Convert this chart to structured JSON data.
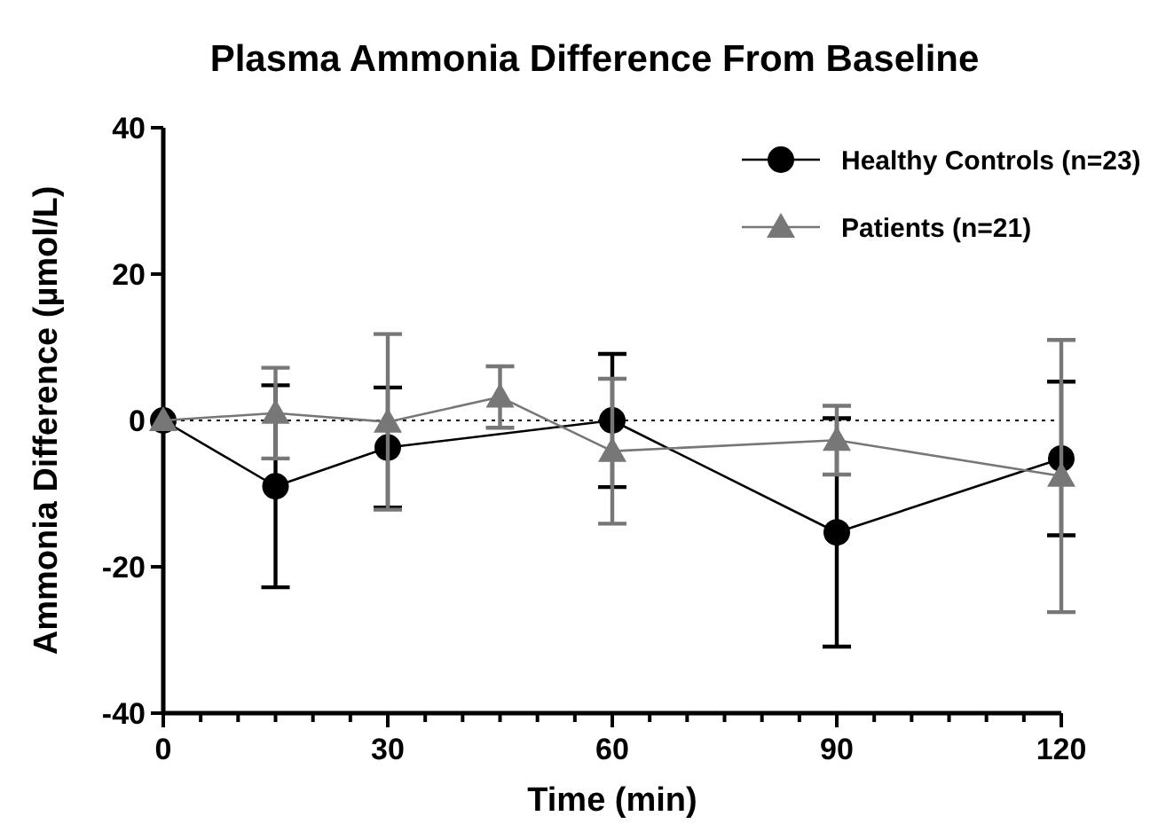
{
  "chart_data": {
    "type": "line",
    "title": "Plasma Ammonia Difference From Baseline",
    "xlabel": "Time (min)",
    "ylabel": "Ammonia Difference (µmol/L)",
    "xlim": [
      0,
      120
    ],
    "xticks": [
      0,
      {
        "value": 5,
        "label": null
      },
      {
        "value": 10,
        "label": null
      },
      {
        "value": 15,
        "label": null
      },
      {
        "value": 20,
        "label": null
      },
      {
        "value": 25,
        "label": null
      },
      30,
      {
        "value": 35,
        "label": null
      },
      {
        "value": 40,
        "label": null
      },
      {
        "value": 45,
        "label": null
      },
      {
        "value": 50,
        "label": null
      },
      {
        "value": 55,
        "label": null
      },
      60,
      {
        "value": 65,
        "label": null
      },
      {
        "value": 70,
        "label": null
      },
      {
        "value": 75,
        "label": null
      },
      {
        "value": 80,
        "label": null
      },
      {
        "value": 85,
        "label": null
      },
      90,
      {
        "value": 95,
        "label": null
      },
      {
        "value": 100,
        "label": null
      },
      {
        "value": 105,
        "label": null
      },
      {
        "value": 110,
        "label": null
      },
      {
        "value": 115,
        "label": null
      },
      120
    ],
    "ylim": [
      -40,
      40
    ],
    "yticks": [
      -40,
      -20,
      0,
      20,
      40
    ],
    "grid": false,
    "legend": "top right",
    "line_style": "solid",
    "ref_lines": [
      {
        "axis": "y",
        "value": 0,
        "line_style": "dotted",
        "color": "#000000"
      }
    ],
    "series": [
      {
        "name": "Healthy Controls (n=23)",
        "color": "#000000",
        "marker": "circle",
        "x": [
          0,
          15,
          30,
          60,
          90,
          120
        ],
        "values": [
          0,
          -9.0,
          -3.7,
          0,
          -15.3,
          -5.2
        ],
        "errors": [
          null,
          13.8,
          8.2,
          9.1,
          15.6,
          10.5
        ]
      },
      {
        "name": "Patients (n=21)",
        "color": "#777777",
        "marker": "triangle",
        "x": [
          0,
          15,
          30,
          45,
          60,
          90,
          120
        ],
        "values": [
          0,
          1.0,
          -0.2,
          3.2,
          -4.2,
          -2.7,
          -7.6
        ],
        "errors": [
          null,
          6.2,
          12.0,
          4.2,
          9.9,
          4.7,
          18.6
        ]
      }
    ]
  }
}
